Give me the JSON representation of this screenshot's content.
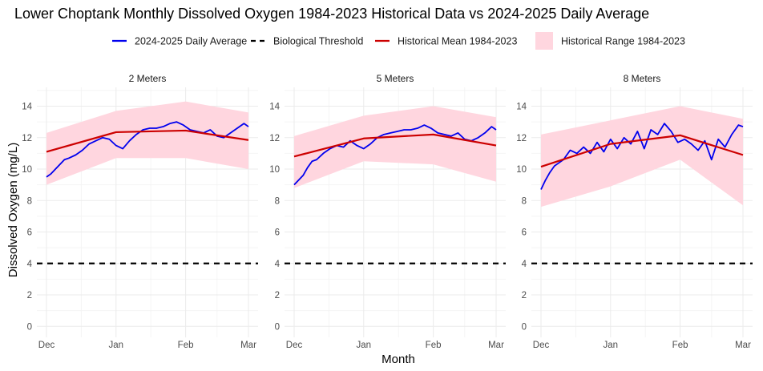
{
  "chart_data": {
    "type": "line",
    "title": "Lower Choptank Monthly Dissolved Oxygen 1984-2023 Historical Data vs 2024-2025 Daily Average",
    "xlabel": "Month",
    "ylabel": "Dissolved Oxygen (mg/L)",
    "x_ticks": [
      "Dec",
      "Jan",
      "Feb",
      "Mar"
    ],
    "y_ticks": [
      0,
      2,
      4,
      6,
      8,
      10,
      12,
      14
    ],
    "ylim": [
      -0.7,
      15.2
    ],
    "grid": true,
    "legend_position": "top",
    "legend": [
      {
        "label": "2024-2025 Daily Average",
        "kind": "line",
        "color": "#0000ee"
      },
      {
        "label": "Biological Threshold",
        "kind": "dashed",
        "color": "#000000"
      },
      {
        "label": "Historical Mean 1984-2023",
        "kind": "line",
        "color": "#cc0000"
      },
      {
        "label": "Historical Range 1984-2023",
        "kind": "fill",
        "color": "#ffd6df"
      }
    ],
    "threshold": 4,
    "panels": [
      {
        "label": "2 Meters",
        "range_month": [
          "Dec",
          "Jan",
          "Feb",
          "Mar"
        ],
        "range_min": [
          9.0,
          10.7,
          10.7,
          10.0
        ],
        "range_max": [
          12.3,
          13.7,
          14.3,
          13.6
        ],
        "mean_month": [
          "Dec",
          "Jan",
          "Feb",
          "Mar"
        ],
        "mean": [
          11.1,
          12.35,
          12.45,
          11.85
        ],
        "daily_x_days": [
          0,
          2,
          4,
          6,
          8,
          10,
          13,
          16,
          19,
          22,
          25,
          28,
          31,
          34,
          37,
          40,
          43,
          46,
          49,
          52,
          55,
          58,
          61,
          64,
          67,
          70,
          73,
          76,
          79,
          82,
          85,
          88,
          90
        ],
        "daily_values": [
          9.5,
          9.7,
          10.0,
          10.3,
          10.6,
          10.7,
          10.9,
          11.2,
          11.6,
          11.8,
          12.0,
          11.9,
          11.5,
          11.3,
          11.8,
          12.2,
          12.5,
          12.6,
          12.6,
          12.7,
          12.9,
          13.0,
          12.8,
          12.5,
          12.4,
          12.3,
          12.5,
          12.1,
          12.0,
          12.3,
          12.6,
          12.9,
          12.7
        ]
      },
      {
        "label": "5 Meters",
        "range_month": [
          "Dec",
          "Jan",
          "Feb",
          "Mar"
        ],
        "range_min": [
          8.8,
          10.5,
          10.3,
          9.2
        ],
        "range_max": [
          12.1,
          13.4,
          14.0,
          13.3
        ],
        "mean_month": [
          "Dec",
          "Jan",
          "Feb",
          "Mar"
        ],
        "mean": [
          10.8,
          11.95,
          12.2,
          11.5
        ],
        "daily_x_days": [
          0,
          2,
          4,
          6,
          8,
          10,
          13,
          16,
          19,
          22,
          25,
          28,
          31,
          34,
          37,
          40,
          43,
          46,
          49,
          52,
          55,
          58,
          61,
          64,
          67,
          70,
          73,
          76,
          79,
          82,
          85,
          88,
          90
        ],
        "daily_values": [
          9.0,
          9.3,
          9.6,
          10.1,
          10.5,
          10.6,
          11.0,
          11.3,
          11.5,
          11.4,
          11.8,
          11.5,
          11.3,
          11.6,
          12.0,
          12.2,
          12.3,
          12.4,
          12.5,
          12.5,
          12.6,
          12.8,
          12.6,
          12.3,
          12.2,
          12.1,
          12.3,
          11.9,
          11.8,
          12.0,
          12.3,
          12.7,
          12.5
        ]
      },
      {
        "label": "8 Meters",
        "range_month": [
          "Dec",
          "Jan",
          "Feb",
          "Mar"
        ],
        "range_min": [
          7.6,
          8.9,
          10.6,
          7.7
        ],
        "range_max": [
          12.2,
          13.1,
          14.0,
          13.2
        ],
        "mean_month": [
          "Dec",
          "Jan",
          "Feb",
          "Mar"
        ],
        "mean": [
          10.15,
          11.6,
          12.15,
          10.9
        ],
        "daily_x_days": [
          0,
          2,
          4,
          6,
          8,
          10,
          13,
          16,
          19,
          22,
          25,
          28,
          31,
          34,
          37,
          40,
          43,
          46,
          49,
          52,
          55,
          58,
          61,
          64,
          67,
          70,
          73,
          76,
          79,
          82,
          85,
          88,
          90
        ],
        "daily_values": [
          8.7,
          9.3,
          9.8,
          10.2,
          10.4,
          10.6,
          11.2,
          11.0,
          11.4,
          11.0,
          11.7,
          11.1,
          11.9,
          11.3,
          12.0,
          11.6,
          12.4,
          11.3,
          12.5,
          12.2,
          12.9,
          12.4,
          11.7,
          11.9,
          11.6,
          11.2,
          11.8,
          10.6,
          11.9,
          11.4,
          12.2,
          12.8,
          12.7
        ]
      }
    ],
    "colors": {
      "daily": "#0000ee",
      "mean": "#cc0000",
      "range": "#ffd6df",
      "threshold": "#000000",
      "grid_major": "#ebebeb",
      "grid_minor": "#f4f4f4"
    }
  }
}
